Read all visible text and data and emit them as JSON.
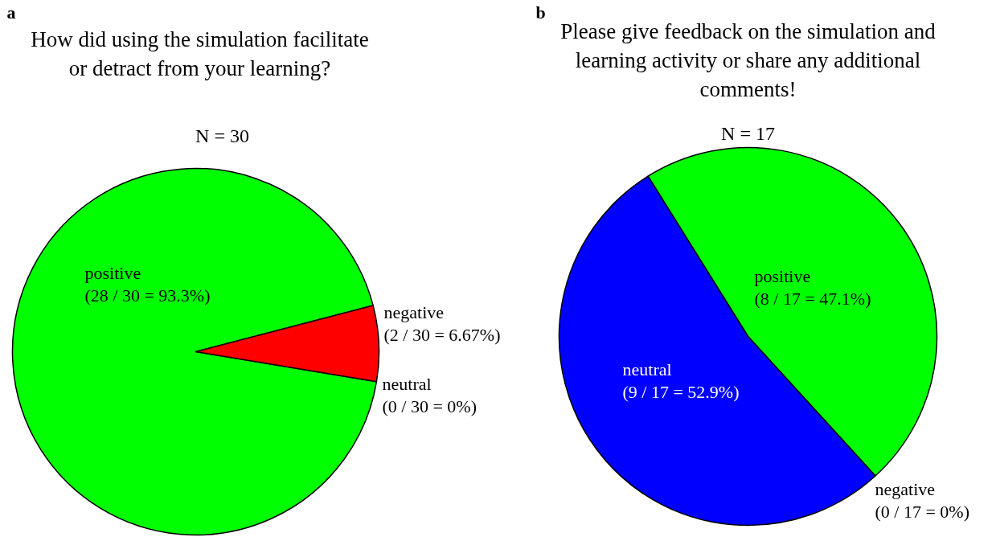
{
  "chart_data": [
    {
      "type": "pie",
      "title": "How did using the simulation facilitate or detract from your learning?",
      "subtitle": "N = 30",
      "annotations": [
        "a"
      ],
      "categories": [
        "positive",
        "negative",
        "neutral"
      ],
      "values": [
        93.3,
        6.67,
        0
      ],
      "value_labels": [
        "(28 / 30 = 93.3%)",
        "(2 / 30 = 6.67%)",
        "(0 / 30 = 0%)"
      ],
      "colors": [
        "#00ff00",
        "#ff0000",
        "#0000ff"
      ]
    },
    {
      "type": "pie",
      "title": "Please give feedback on the simulation and learning activity or share any additional comments!",
      "subtitle": "N = 17",
      "annotations": [
        "b"
      ],
      "categories": [
        "positive",
        "neutral",
        "negative"
      ],
      "values": [
        47.1,
        52.9,
        0
      ],
      "value_labels": [
        "(8 / 17 = 47.1%)",
        "(9 / 17 = 52.9%)",
        "(0 / 17 = 0%)"
      ],
      "colors": [
        "#00ff00",
        "#0000ff",
        "#ff0000"
      ]
    }
  ]
}
